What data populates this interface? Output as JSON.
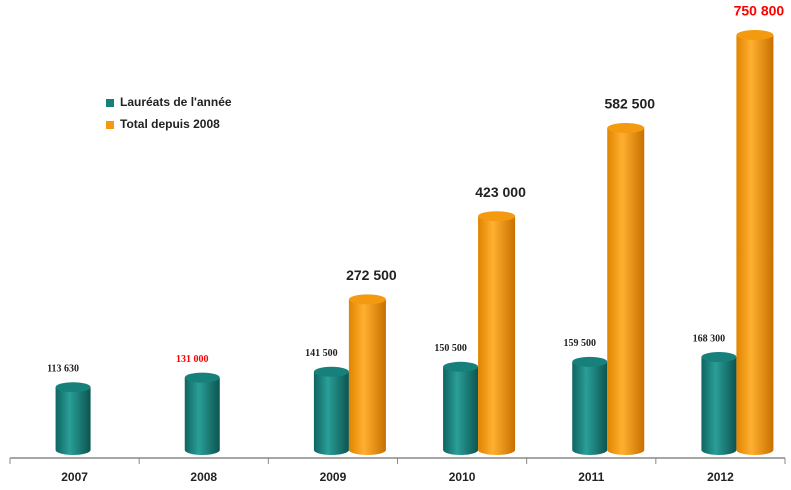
{
  "chart_data": {
    "type": "bar",
    "categories": [
      "2007",
      "2008",
      "2009",
      "2010",
      "2011",
      "2012"
    ],
    "series": [
      {
        "name": "Lauréats de l'année",
        "color": "#17807b",
        "values": [
          113630,
          131000,
          141500,
          150500,
          159500,
          168300
        ],
        "value_labels": [
          "113 630",
          "131 000",
          "141 500",
          "150 500",
          "159 500",
          "168 300"
        ],
        "label_colors": [
          "#222222",
          "#ff0000",
          "#222222",
          "#222222",
          "#222222",
          "#222222"
        ]
      },
      {
        "name": "Total depuis 2008",
        "color": "#f39a10",
        "values": [
          null,
          null,
          272500,
          423000,
          582500,
          750800
        ],
        "value_labels": [
          null,
          null,
          "272 500",
          "423 000",
          "582 500",
          "750 800"
        ],
        "label_colors": [
          null,
          null,
          "#222222",
          "#222222",
          "#222222",
          "#ff0000"
        ]
      }
    ],
    "legend": "upper-left"
  }
}
